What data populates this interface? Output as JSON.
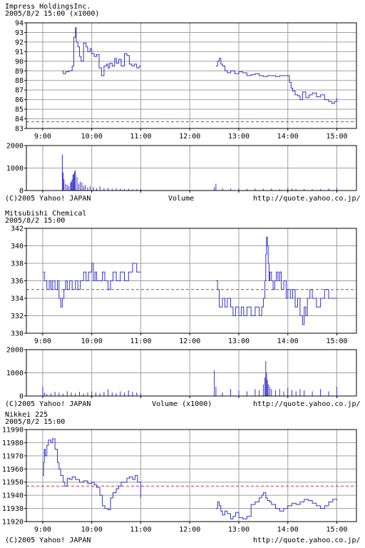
{
  "charts": [
    {
      "title": "Impress  HoldingsInc.",
      "subtitle": "2005/8/2 15:00  (x1000)",
      "footer_left": "(C)2005 Yahoo! JAPAN",
      "footer_center": "Volume",
      "footer_right": "http://quote.yahoo.co.jp/"
    },
    {
      "title": "Mitsubishi  Chemical",
      "subtitle": "2005/8/2 15:00",
      "footer_left": "(C)2005 Yahoo! JAPAN",
      "footer_center": "Volume (x1000)",
      "footer_right": "http://quote.yahoo.co.jp/"
    },
    {
      "title": "Nikkei 225",
      "subtitle": "2005/8/2 15:00",
      "footer_left": "(C)2005 Yahoo! JAPAN",
      "footer_right": "http://quote.yahoo.co.jp/"
    }
  ],
  "colors": {
    "line": "#3333cc",
    "grid": "#a0a0a0",
    "reference": "#cc3333",
    "frame": "#000000"
  },
  "chart_data": [
    {
      "type": "line",
      "title": "Impress  HoldingsInc.",
      "x_ticks": [
        "9:00",
        "10:00",
        "11:00",
        "12:00",
        "13:00",
        "14:00",
        "15:00"
      ],
      "xlim": [
        "8:40",
        "15:24"
      ],
      "y_ticks": [
        83,
        84,
        85,
        86,
        87,
        88,
        89,
        90,
        91,
        92,
        93,
        94
      ],
      "ylim": [
        83,
        94
      ],
      "grid": true,
      "reference_line": 83.7,
      "series": [
        {
          "x": [
            "9:24",
            "9:25",
            "9:28",
            "9:32",
            "9:36",
            "9:38",
            "9:40",
            "9:41",
            "9:43",
            "9:45",
            "9:47",
            "9:50",
            "9:53",
            "9:55",
            "9:58",
            "10:00",
            "10:03",
            "10:06",
            "10:09",
            "10:12",
            "10:15",
            "10:18",
            "10:20",
            "10:22",
            "10:25",
            "10:28",
            "10:30",
            "10:33",
            "10:36",
            "10:40",
            "10:43",
            "10:46",
            "10:49",
            "10:52",
            "10:55",
            "10:58",
            "11:00"
          ],
          "y": [
            89.0,
            88.7,
            88.9,
            89.0,
            89.5,
            92.5,
            93.5,
            92.0,
            91.5,
            90.5,
            90.0,
            91.9,
            91.5,
            91.0,
            91.3,
            90.8,
            90.5,
            90.7,
            89.3,
            88.5,
            89.5,
            89.7,
            89.3,
            89.8,
            89.5,
            90.3,
            89.8,
            90.2,
            89.5,
            90.8,
            90.6,
            89.7,
            89.5,
            89.7,
            89.3,
            89.5,
            89.5
          ]
        },
        {
          "x": [
            "12:32",
            "12:34",
            "12:36",
            "12:38",
            "12:40",
            "12:43",
            "12:46",
            "12:50",
            "12:55",
            "13:00",
            "13:05",
            "13:10",
            "13:15",
            "13:20",
            "13:25",
            "13:30",
            "13:35",
            "13:40",
            "13:45",
            "13:50",
            "13:55",
            "14:00",
            "14:02",
            "14:04",
            "14:06",
            "14:09",
            "14:12",
            "14:15",
            "14:18",
            "14:22",
            "14:26",
            "14:30",
            "14:35",
            "14:40",
            "14:45",
            "14:50",
            "14:54",
            "14:57",
            "15:00"
          ],
          "y": [
            89.5,
            90.0,
            90.3,
            89.7,
            89.5,
            89.0,
            88.8,
            89.0,
            88.7,
            88.9,
            88.8,
            88.5,
            88.6,
            88.7,
            88.5,
            88.4,
            88.5,
            88.5,
            88.4,
            88.5,
            88.5,
            88.5,
            87.8,
            87.2,
            86.9,
            86.5,
            86.4,
            86.0,
            86.8,
            86.2,
            86.5,
            86.7,
            86.3,
            86.5,
            86.0,
            85.8,
            85.6,
            85.8,
            86.2
          ]
        }
      ]
    },
    {
      "type": "bar",
      "title": "Volume",
      "x_ticks": [
        "9:00",
        "10:00",
        "11:00",
        "12:00",
        "13:00",
        "14:00",
        "15:00"
      ],
      "y_ticks": [
        0,
        1000,
        2000
      ],
      "ylim": [
        0,
        2000
      ],
      "grid": true,
      "x": [
        "9:24",
        "9:25",
        "9:26",
        "9:28",
        "9:30",
        "9:32",
        "9:34",
        "9:35",
        "9:36",
        "9:37",
        "9:38",
        "9:39",
        "9:40",
        "9:42",
        "9:44",
        "9:46",
        "9:48",
        "9:50",
        "9:52",
        "9:55",
        "9:58",
        "10:02",
        "10:06",
        "10:10",
        "10:15",
        "10:20",
        "10:25",
        "10:30",
        "10:35",
        "10:40",
        "10:45",
        "10:50",
        "10:55",
        "11:00",
        "12:30",
        "12:32",
        "12:40",
        "12:50",
        "13:00",
        "13:10",
        "13:20",
        "13:30",
        "13:40",
        "13:50",
        "14:00",
        "14:05",
        "14:10",
        "14:20",
        "14:30",
        "14:40",
        "14:50",
        "15:00"
      ],
      "values": [
        1600,
        800,
        500,
        300,
        250,
        200,
        350,
        400,
        500,
        700,
        750,
        850,
        900,
        600,
        300,
        400,
        350,
        200,
        250,
        150,
        200,
        150,
        100,
        180,
        100,
        120,
        80,
        100,
        90,
        60,
        80,
        50,
        60,
        80,
        150,
        300,
        100,
        80,
        100,
        70,
        90,
        80,
        90,
        70,
        120,
        90,
        70,
        80,
        60,
        70,
        90,
        120
      ]
    },
    {
      "type": "line",
      "title": "Mitsubishi  Chemical",
      "x_ticks": [
        "9:00",
        "10:00",
        "11:00",
        "12:00",
        "13:00",
        "14:00",
        "15:00"
      ],
      "xlim": [
        "8:40",
        "15:24"
      ],
      "y_ticks": [
        330,
        332,
        334,
        336,
        338,
        340,
        342
      ],
      "ylim": [
        330,
        342
      ],
      "grid": true,
      "reference_line": 335,
      "series": [
        {
          "x": [
            "9:00",
            "9:02",
            "9:05",
            "9:08",
            "9:10",
            "9:12",
            "9:15",
            "9:18",
            "9:20",
            "9:22",
            "9:24",
            "9:26",
            "9:28",
            "9:30",
            "9:33",
            "9:36",
            "9:40",
            "9:43",
            "9:46",
            "9:50",
            "9:53",
            "9:56",
            "10:00",
            "10:02",
            "10:04",
            "10:06",
            "10:10",
            "10:13",
            "10:16",
            "10:20",
            "10:23",
            "10:26",
            "10:30",
            "10:35",
            "10:40",
            "10:45",
            "10:50",
            "10:55",
            "10:58",
            "11:00"
          ],
          "y": [
            337,
            336,
            335,
            336,
            335,
            336,
            335,
            336,
            334,
            333,
            334,
            335,
            336,
            335,
            336,
            335,
            336,
            335,
            336,
            337,
            336,
            337,
            338,
            336,
            337,
            336,
            336,
            337,
            336,
            335,
            336,
            337,
            336,
            337,
            336,
            337,
            338,
            337,
            337,
            337
          ]
        },
        {
          "x": [
            "12:32",
            "12:34",
            "12:36",
            "12:40",
            "12:43",
            "12:46",
            "12:50",
            "12:53",
            "12:56",
            "13:00",
            "13:03",
            "13:06",
            "13:10",
            "13:15",
            "13:20",
            "13:25",
            "13:28",
            "13:30",
            "13:32",
            "13:33",
            "13:34",
            "13:35",
            "13:36",
            "13:37",
            "13:38",
            "13:40",
            "13:42",
            "13:44",
            "13:46",
            "13:48",
            "13:50",
            "13:52",
            "13:55",
            "13:58",
            "14:00",
            "14:03",
            "14:06",
            "14:09",
            "14:12",
            "14:15",
            "14:18",
            "14:20",
            "14:22",
            "14:24",
            "14:27",
            "14:30",
            "14:35",
            "14:40",
            "14:45",
            "14:50",
            "14:55",
            "15:00"
          ],
          "y": [
            336,
            335,
            333,
            334,
            333,
            334,
            333,
            332,
            333,
            332,
            333,
            332,
            333,
            332,
            333,
            332,
            333,
            334,
            336,
            339,
            341,
            340,
            338,
            336,
            337,
            336,
            335,
            336,
            337,
            336,
            337,
            335,
            336,
            334,
            335,
            334,
            335,
            333,
            334,
            332,
            331,
            333,
            332,
            334,
            335,
            334,
            333,
            334,
            335,
            334,
            334,
            334
          ]
        }
      ]
    },
    {
      "type": "bar",
      "title": "Volume (x1000)",
      "x_ticks": [
        "9:00",
        "10:00",
        "11:00",
        "12:00",
        "13:00",
        "14:00",
        "15:00"
      ],
      "y_ticks": [
        0,
        1000,
        2000
      ],
      "ylim": [
        0,
        2000
      ],
      "grid": true,
      "x": [
        "9:00",
        "9:02",
        "9:05",
        "9:10",
        "9:15",
        "9:20",
        "9:25",
        "9:30",
        "9:35",
        "9:40",
        "9:45",
        "9:50",
        "9:55",
        "10:00",
        "10:05",
        "10:10",
        "10:15",
        "10:20",
        "10:25",
        "10:30",
        "10:35",
        "10:40",
        "10:45",
        "10:50",
        "10:55",
        "11:00",
        "12:30",
        "12:32",
        "12:40",
        "12:50",
        "13:00",
        "13:10",
        "13:20",
        "13:25",
        "13:30",
        "13:32",
        "13:33",
        "13:34",
        "13:35",
        "13:36",
        "13:38",
        "13:40",
        "13:45",
        "13:50",
        "13:55",
        "14:00",
        "14:05",
        "14:10",
        "14:15",
        "14:20",
        "14:30",
        "14:40",
        "14:50",
        "15:00"
      ],
      "values": [
        400,
        150,
        100,
        120,
        180,
        150,
        100,
        200,
        150,
        120,
        180,
        100,
        150,
        200,
        150,
        120,
        180,
        300,
        150,
        120,
        200,
        150,
        250,
        180,
        150,
        120,
        1100,
        400,
        150,
        300,
        250,
        200,
        300,
        250,
        500,
        800,
        1500,
        1000,
        700,
        500,
        400,
        300,
        250,
        300,
        200,
        350,
        250,
        200,
        300,
        250,
        200,
        300,
        200,
        400
      ]
    },
    {
      "type": "line",
      "title": "Nikkei 225",
      "x_ticks": [
        "9:00",
        "10:00",
        "11:00",
        "12:00",
        "13:00",
        "14:00",
        "15:00"
      ],
      "xlim": [
        "8:40",
        "15:24"
      ],
      "y_ticks": [
        11920,
        11930,
        11940,
        11950,
        11960,
        11970,
        11980,
        11990
      ],
      "ylim": [
        11920,
        11990
      ],
      "grid": true,
      "reference_line": 11947,
      "series": [
        {
          "x": [
            "9:00",
            "9:01",
            "9:02",
            "9:03",
            "9:05",
            "9:07",
            "9:10",
            "9:12",
            "9:15",
            "9:18",
            "9:20",
            "9:22",
            "9:25",
            "9:27",
            "9:30",
            "9:33",
            "9:36",
            "9:40",
            "9:45",
            "9:50",
            "9:55",
            "10:00",
            "10:03",
            "10:06",
            "10:10",
            "10:13",
            "10:16",
            "10:20",
            "10:23",
            "10:26",
            "10:30",
            "10:33",
            "10:36",
            "10:40",
            "10:43",
            "10:46",
            "10:50",
            "10:53",
            "10:56",
            "11:00"
          ],
          "y": [
            11955,
            11965,
            11975,
            11970,
            11978,
            11982,
            11980,
            11983,
            11975,
            11965,
            11960,
            11955,
            11950,
            11947,
            11953,
            11952,
            11954,
            11952,
            11950,
            11951,
            11949,
            11950,
            11948,
            11946,
            11940,
            11932,
            11930,
            11929,
            11938,
            11942,
            11945,
            11947,
            11950,
            11950,
            11953,
            11954,
            11952,
            11955,
            11950,
            11938
          ]
        },
        {
          "x": [
            "12:32",
            "12:34",
            "12:36",
            "12:38",
            "12:40",
            "12:43",
            "12:46",
            "12:50",
            "12:53",
            "12:56",
            "13:00",
            "13:05",
            "13:10",
            "13:15",
            "13:20",
            "13:25",
            "13:28",
            "13:30",
            "13:33",
            "13:35",
            "13:38",
            "13:40",
            "13:45",
            "13:50",
            "13:55",
            "14:00",
            "14:05",
            "14:10",
            "14:15",
            "14:20",
            "14:25",
            "14:30",
            "14:35",
            "14:40",
            "14:45",
            "14:50",
            "14:55",
            "15:00"
          ],
          "y": [
            11930,
            11935,
            11932,
            11928,
            11925,
            11928,
            11926,
            11922,
            11924,
            11927,
            11923,
            11922,
            11924,
            11933,
            11935,
            11938,
            11940,
            11942,
            11938,
            11936,
            11935,
            11933,
            11930,
            11928,
            11930,
            11932,
            11934,
            11933,
            11935,
            11937,
            11936,
            11934,
            11932,
            11930,
            11932,
            11935,
            11937,
            11936
          ]
        }
      ]
    }
  ]
}
